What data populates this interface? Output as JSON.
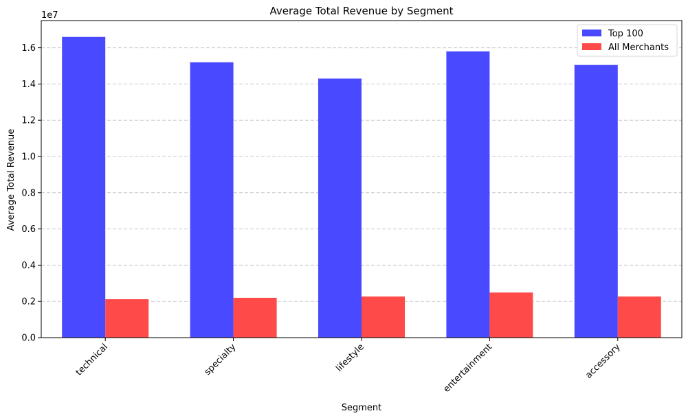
{
  "chart_data": {
    "type": "bar",
    "title": "Average Total Revenue by Segment",
    "xlabel": "Segment",
    "ylabel": "Average Total Revenue",
    "y_scale_label": "1e7",
    "categories": [
      "technical",
      "specialty",
      "lifestyle",
      "entertainment",
      "accessory"
    ],
    "series": [
      {
        "name": "Top 100",
        "color": "#4949ff",
        "values": [
          16600000,
          15200000,
          14300000,
          15800000,
          15050000
        ]
      },
      {
        "name": "All Merchants",
        "color": "#ff4a4a",
        "values": [
          2120000,
          2200000,
          2270000,
          2490000,
          2270000
        ]
      }
    ],
    "ylim": [
      0,
      17500000
    ],
    "yticks": [
      0,
      2000000,
      4000000,
      6000000,
      8000000,
      10000000,
      12000000,
      14000000,
      16000000
    ],
    "ytick_labels": [
      "0.0",
      "0.2",
      "0.4",
      "0.6",
      "0.8",
      "1.0",
      "1.2",
      "1.4",
      "1.6"
    ],
    "grid": "y-dashed",
    "legend_position": "top-right",
    "xtick_rotation": 45
  }
}
